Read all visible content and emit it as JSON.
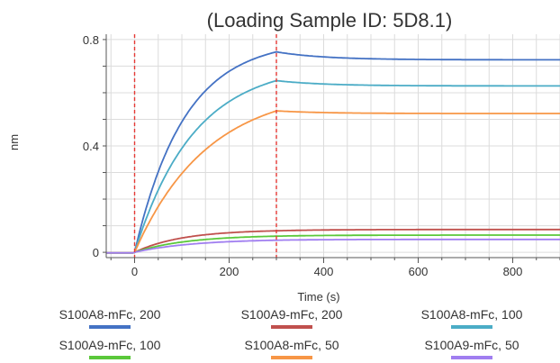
{
  "chart_data": {
    "type": "line",
    "title": "(Loading Sample ID: 5D8.1)",
    "xlabel": "Time (s)",
    "ylabel": "nm",
    "xlim": [
      -60,
      900
    ],
    "ylim": [
      -0.02,
      0.82
    ],
    "xticks": [
      0,
      200,
      400,
      600,
      800
    ],
    "xtick_labels": [
      "0",
      "200",
      "400",
      "600",
      "800"
    ],
    "yticks": [
      0,
      0.4,
      0.8
    ],
    "ytick_labels": [
      "0",
      "0.4",
      "0.8"
    ],
    "grid": true,
    "event_lines_x": [
      0,
      300
    ],
    "association_end": 300,
    "baseline_start": -60,
    "series": [
      {
        "name": "S100A8-mFc, 200",
        "color": "#4472c4",
        "plateau": 0.8,
        "k_on": 0.0095,
        "dissociated": 0.03
      },
      {
        "name": "S100A9-mFc, 200",
        "color": "#c0504d",
        "plateau": 0.085,
        "k_on": 0.01,
        "dissociated": -0.005
      },
      {
        "name": "S100A8-mFc, 100",
        "color": "#4bacc6",
        "plateau": 0.71,
        "k_on": 0.008,
        "dissociated": 0.02
      },
      {
        "name": "S100A9-mFc, 100",
        "color": "#5ac83a",
        "plateau": 0.065,
        "k_on": 0.009,
        "dissociated": -0.004
      },
      {
        "name": "S100A8-mFc, 50",
        "color": "#f79646",
        "plateau": 0.62,
        "k_on": 0.0065,
        "dissociated": 0.01
      },
      {
        "name": "S100A9-mFc, 50",
        "color": "#a07ef0",
        "plateau": 0.05,
        "k_on": 0.008,
        "dissociated": -0.003
      }
    ]
  }
}
